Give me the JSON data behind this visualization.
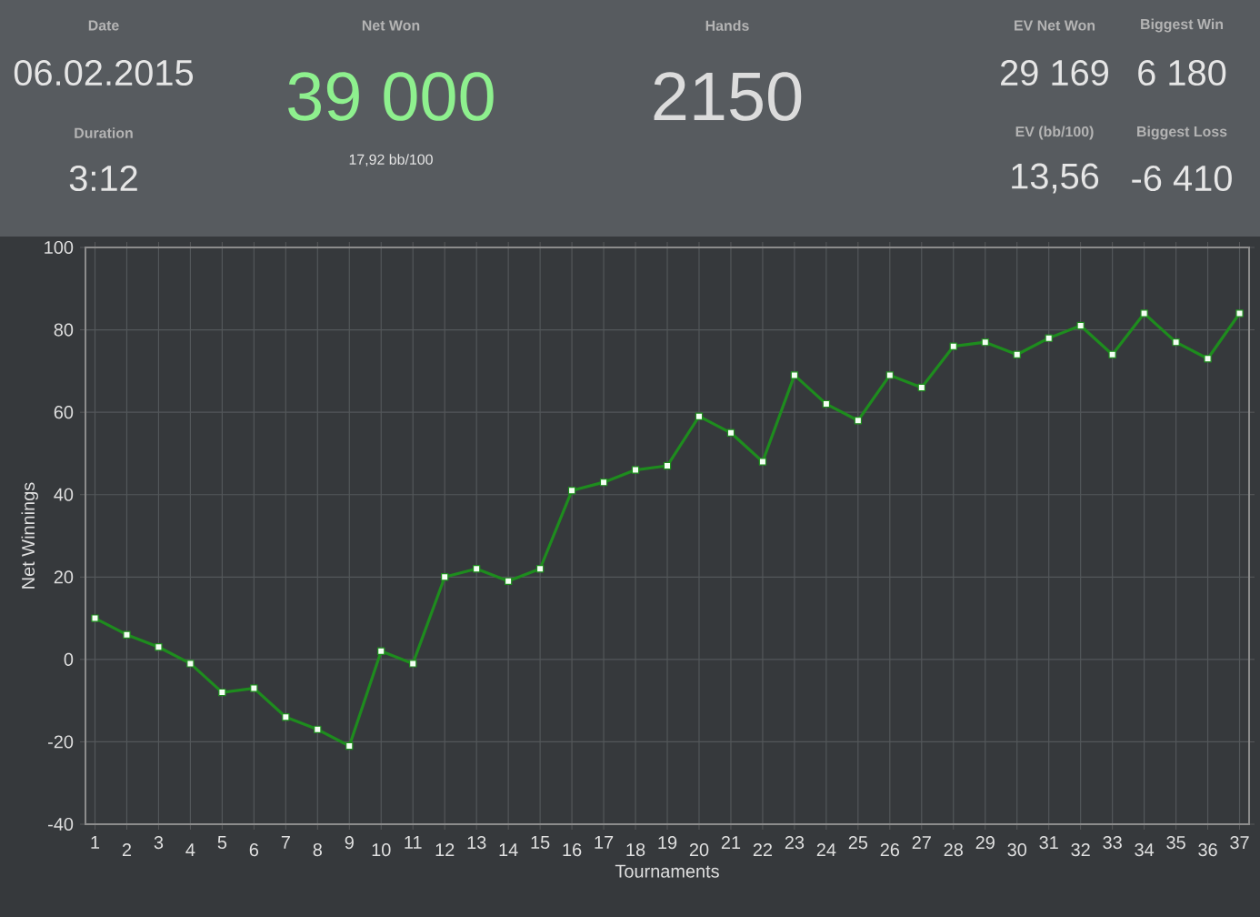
{
  "chart_data": {
    "type": "line",
    "annotations": [
      "Date",
      "06.02.2015",
      "Duration",
      "3:12",
      "Net Won",
      "39 000",
      "17,92 bb/100",
      "Hands",
      "2150",
      "EV Net Won",
      "29 169",
      "Biggest Win",
      "6 180",
      "EV (bb/100)",
      "13,56",
      "Biggest Loss",
      "-6 410"
    ],
    "xlabel": "Tournaments",
    "ylabel": "Net Winnings",
    "categories": [
      "1",
      "2",
      "3",
      "4",
      "5",
      "6",
      "7",
      "8",
      "9",
      "10",
      "11",
      "12",
      "13",
      "14",
      "15",
      "16",
      "17",
      "18",
      "19",
      "20",
      "21",
      "22",
      "23",
      "24",
      "25",
      "26",
      "27",
      "28",
      "29",
      "30",
      "31",
      "32",
      "33",
      "34",
      "35",
      "36",
      "37"
    ],
    "series": [
      {
        "color": "#1e8c1e",
        "values": [
          10,
          6,
          3,
          -1,
          -8,
          -7,
          -14,
          -17,
          -21,
          2,
          -1,
          20,
          22,
          19,
          22,
          41,
          43,
          46,
          47,
          59,
          55,
          48,
          69,
          62,
          58,
          69,
          66,
          76,
          77,
          74,
          78,
          81,
          74,
          84,
          77,
          73,
          84
        ]
      }
    ],
    "ylim": [
      -40,
      100
    ],
    "yticks": [
      -40,
      -20,
      0,
      20,
      40,
      60,
      80,
      100
    ],
    "grid": true,
    "marker": "square",
    "line_style": "solid"
  }
}
